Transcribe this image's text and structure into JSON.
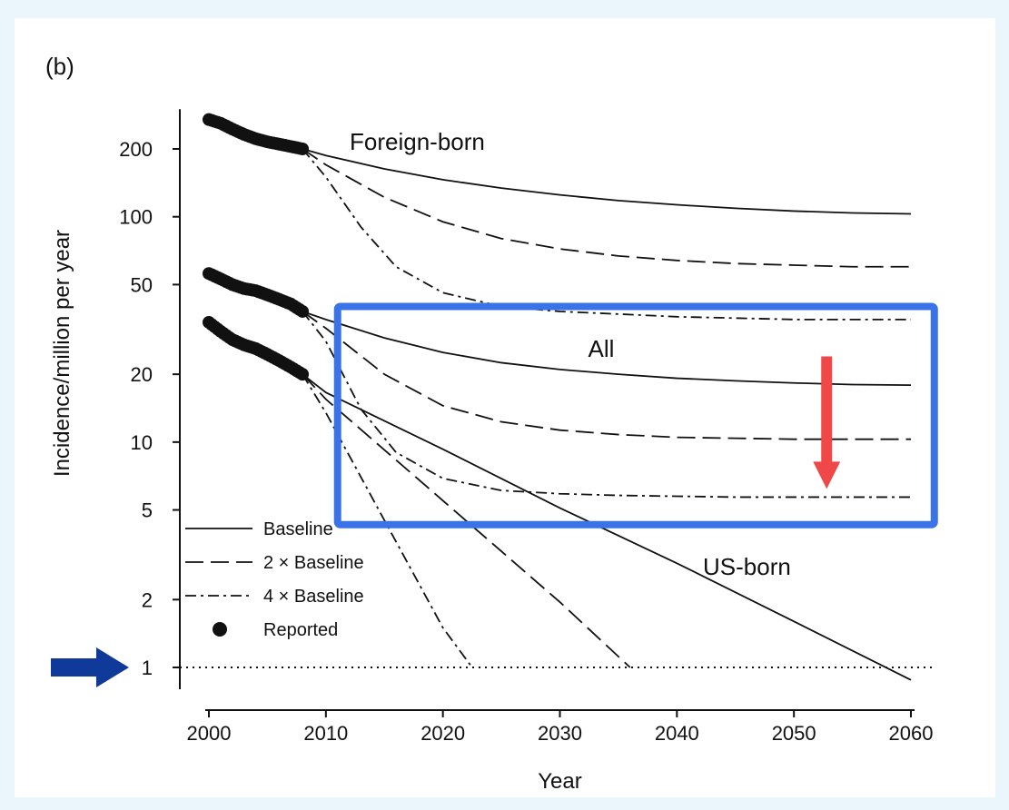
{
  "chart_data": {
    "type": "line",
    "panel_label": "(b)",
    "xlabel": "Year",
    "ylabel": "Incidence/million per year",
    "xlim": [
      2000,
      2060
    ],
    "ylim": [
      0.8,
      300
    ],
    "yscale": "log",
    "x_ticks": [
      2000,
      2010,
      2020,
      2030,
      2040,
      2050,
      2060
    ],
    "y_ticks": [
      1,
      2,
      5,
      10,
      20,
      50,
      100,
      200
    ],
    "groups": [
      {
        "name": "Foreign-born",
        "label_text": "Foreign-born",
        "reported": {
          "x": [
            2000,
            2001,
            2002,
            2003,
            2004,
            2005,
            2006,
            2007,
            2008
          ],
          "y": [
            270,
            260,
            245,
            232,
            222,
            215,
            210,
            205,
            200
          ]
        },
        "projections": {
          "baseline": {
            "x": [
              2008,
              2010,
              2015,
              2020,
              2025,
              2030,
              2035,
              2040,
              2045,
              2050,
              2055,
              2060
            ],
            "y": [
              200,
              187,
              163,
              146,
              134,
              125,
              118,
              113,
              109,
              106,
              104,
              103
            ]
          },
          "x2": {
            "x": [
              2008,
              2010,
              2015,
              2020,
              2025,
              2030,
              2035,
              2040,
              2045,
              2050,
              2055,
              2060
            ],
            "y": [
              200,
              170,
              122,
              95,
              80,
              72,
              67,
              64,
              62,
              61,
              60,
              60
            ]
          },
          "x4": {
            "x": [
              2008,
              2010,
              2013,
              2016,
              2020,
              2025,
              2030,
              2035,
              2040,
              2045,
              2050,
              2055,
              2060
            ],
            "y": [
              200,
              150,
              90,
              60,
              46,
              40,
              38,
              37,
              36,
              35.5,
              35,
              35,
              35
            ]
          }
        }
      },
      {
        "name": "All",
        "label_text": "All",
        "reported": {
          "x": [
            2000,
            2001,
            2002,
            2003,
            2004,
            2005,
            2006,
            2007,
            2008
          ],
          "y": [
            56,
            53,
            50,
            48,
            47,
            45,
            43,
            41,
            38
          ]
        },
        "projections": {
          "baseline": {
            "x": [
              2008,
              2010,
              2015,
              2020,
              2025,
              2030,
              2035,
              2040,
              2045,
              2050,
              2055,
              2060
            ],
            "y": [
              38,
              35,
              29,
              25,
              22.5,
              21,
              20,
              19.2,
              18.7,
              18.3,
              18,
              17.9
            ]
          },
          "x2": {
            "x": [
              2008,
              2010,
              2015,
              2020,
              2025,
              2030,
              2035,
              2040,
              2045,
              2050,
              2055,
              2060
            ],
            "y": [
              38,
              32,
              20,
              14.5,
              12.3,
              11.3,
              10.8,
              10.5,
              10.4,
              10.3,
              10.3,
              10.3
            ]
          },
          "x4": {
            "x": [
              2008,
              2010,
              2013,
              2016,
              2020,
              2025,
              2030,
              2035,
              2040,
              2045,
              2050,
              2055,
              2060
            ],
            "y": [
              38,
              28,
              14,
              9,
              6.9,
              6.1,
              5.9,
              5.8,
              5.75,
              5.7,
              5.7,
              5.7,
              5.7
            ]
          }
        }
      },
      {
        "name": "US-born",
        "label_text": "US-born",
        "reported": {
          "x": [
            2000,
            2001,
            2002,
            2003,
            2004,
            2005,
            2006,
            2007,
            2008
          ],
          "y": [
            34,
            31,
            28.5,
            27,
            26,
            24.5,
            23,
            21.5,
            20
          ]
        },
        "projections": {
          "baseline": {
            "x": [
              2008,
              2010,
              2020,
              2030,
              2040,
              2050,
              2060
            ],
            "y": [
              20,
              16.6,
              9.3,
              5.1,
              2.9,
              1.6,
              0.88
            ]
          },
          "x2": {
            "x": [
              2008,
              2010,
              2020,
              2030,
              2036
            ],
            "y": [
              20,
              15.5,
              5.5,
              1.95,
              1.0
            ]
          },
          "x4": {
            "x": [
              2008,
              2010,
              2015,
              2020,
              2022.5
            ],
            "y": [
              20,
              13.5,
              4.5,
              1.5,
              1.0
            ]
          }
        }
      }
    ],
    "reference_line": {
      "y": 1,
      "style": "dotted"
    },
    "legend": {
      "position": "lower-left",
      "entries": [
        {
          "label": "Baseline",
          "style": "solid"
        },
        {
          "label": "2 × Baseline",
          "style": "dashed"
        },
        {
          "label": "4 × Baseline",
          "style": "dash-dot"
        },
        {
          "label": "Reported",
          "style": "marker"
        }
      ]
    },
    "overlays": {
      "highlight_box_color": "#3a72e8",
      "highlight_box_range": {
        "x": [
          2011,
          2062
        ],
        "y": [
          4.3,
          40
        ]
      },
      "down_arrow_color": "#f04848",
      "down_arrow_range": {
        "x": 2052.8,
        "y_from": 24,
        "y_to": 6.2
      },
      "right_arrow_color": "#0f3a9a",
      "right_arrow_points_to_y": 1
    },
    "line_color": "#111111"
  }
}
